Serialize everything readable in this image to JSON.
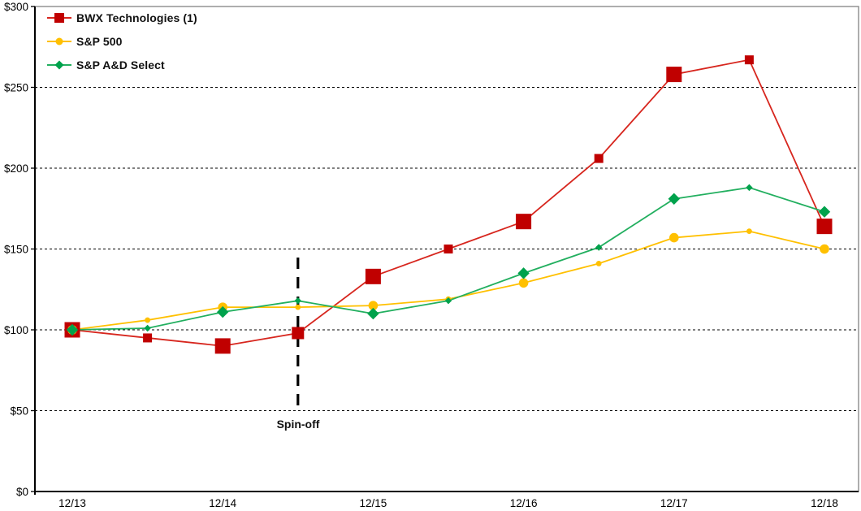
{
  "chart_data": {
    "type": "line",
    "title": "",
    "subtitle": "",
    "legend_position": "top-left",
    "grid": "horizontal-dashed",
    "y_axis": {
      "min": 0,
      "max": 300,
      "step": 50,
      "prefix": "$",
      "ticks": [
        "$0",
        "$50",
        "$100",
        "$150",
        "$200",
        "$250",
        "$300"
      ]
    },
    "x_axis": {
      "labels": [
        "12/13",
        "12/14",
        "12/15",
        "12/16",
        "12/17",
        "12/18"
      ]
    },
    "x_points": [
      "12/13",
      "6/14",
      "12/14",
      "6/15",
      "12/15",
      "6/16",
      "12/16",
      "6/17",
      "12/17",
      "6/18",
      "12/18"
    ],
    "annotation": {
      "label": "Spin-off",
      "x_point": "6/15"
    },
    "series": [
      {
        "name": "BWX Technologies (1)",
        "marker": "square",
        "line_color": "#D7261E",
        "marker_color": "#C00000",
        "values": [
          100,
          95,
          90,
          98,
          133,
          150,
          167,
          206,
          258,
          267,
          164
        ]
      },
      {
        "name": "S&P 500",
        "marker": "circle",
        "line_color": "#FFC000",
        "marker_color": "#FFC000",
        "values": [
          100,
          106,
          114,
          114,
          115,
          119,
          129,
          141,
          157,
          161,
          150
        ]
      },
      {
        "name": "S&P A&D Select",
        "marker": "diamond",
        "line_color": "#22AF5F",
        "marker_color": "#00A24C",
        "values": [
          100,
          101,
          111,
          118,
          110,
          118,
          135,
          151,
          181,
          188,
          173
        ]
      }
    ]
  }
}
